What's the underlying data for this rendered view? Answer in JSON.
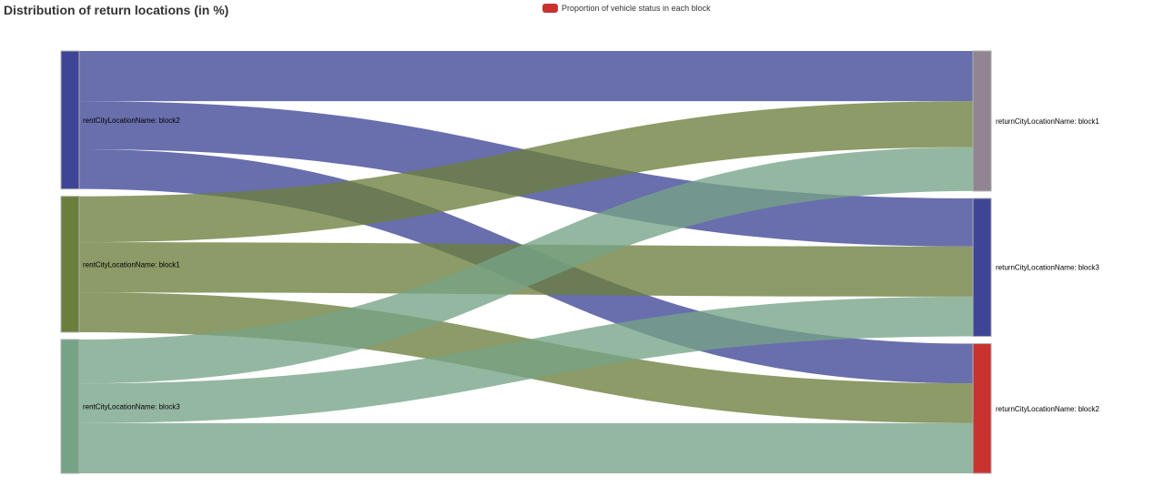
{
  "chart_data": {
    "type": "sankey",
    "title": "Distribution of return locations (in %)",
    "legend": {
      "label": "Proportion of vehicle status in each block",
      "color": "#c8332f",
      "position": "top-center"
    },
    "source_nodes": [
      {
        "id": "s_block2",
        "label": "rentCityLocationName: block2",
        "color": "#3f4596"
      },
      {
        "id": "s_block1",
        "label": "rentCityLocationName: block1",
        "color": "#6b7f3c"
      },
      {
        "id": "s_block3",
        "label": "rentCityLocationName: block3",
        "color": "#76a386"
      }
    ],
    "target_nodes": [
      {
        "id": "t_block1",
        "label": "returnCityLocationName: block1",
        "color": "#928592"
      },
      {
        "id": "t_block3",
        "label": "returnCityLocationName: block3",
        "color": "#3f4596"
      },
      {
        "id": "t_block2",
        "label": "returnCityLocationName: block2",
        "color": "#c8332f"
      }
    ],
    "links": [
      {
        "source": "s_block2",
        "target": "t_block1",
        "value": 12.0
      },
      {
        "source": "s_block2",
        "target": "t_block3",
        "value": 11.5
      },
      {
        "source": "s_block2",
        "target": "t_block2",
        "value": 9.5
      },
      {
        "source": "s_block1",
        "target": "t_block1",
        "value": 11.0
      },
      {
        "source": "s_block1",
        "target": "t_block3",
        "value": 12.0
      },
      {
        "source": "s_block1",
        "target": "t_block2",
        "value": 9.5
      },
      {
        "source": "s_block3",
        "target": "t_block1",
        "value": 10.5
      },
      {
        "source": "s_block3",
        "target": "t_block3",
        "value": 9.5
      },
      {
        "source": "s_block3",
        "target": "t_block2",
        "value": 12.0
      }
    ]
  }
}
